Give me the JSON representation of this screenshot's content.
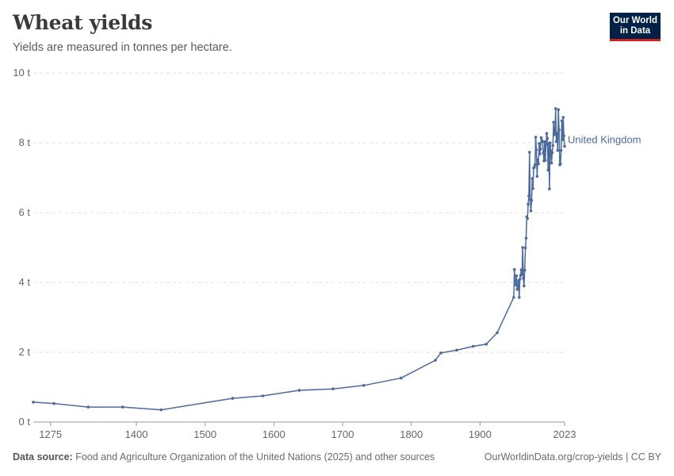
{
  "header": {
    "title": "Wheat yields",
    "subtitle": "Yields are measured in tonnes per hectare."
  },
  "logo": {
    "line1": "Our World",
    "line2": "in Data"
  },
  "footer": {
    "source_label": "Data source:",
    "source_text": "Food and Agriculture Organization of the United Nations (2025) and other sources",
    "link": "OurWorldinData.org/crop-yields | CC BY"
  },
  "colors": {
    "series": "#4c6a9c",
    "grid": "#dddddd",
    "text": "#666666",
    "logo_bg": "#002147",
    "logo_accent": "#ce261e"
  },
  "chart_data": {
    "type": "line",
    "title": "Wheat yields",
    "subtitle": "Yields are measured in tonnes per hectare.",
    "xlim": [
      1250,
      2023
    ],
    "ylim": [
      0,
      10
    ],
    "x_ticks": [
      1275,
      1400,
      1500,
      1600,
      1700,
      1800,
      1900,
      2023
    ],
    "x_tick_labels": [
      "1275",
      "1400",
      "1500",
      "1600",
      "1700",
      "1800",
      "1900",
      "2023"
    ],
    "y_ticks": [
      0,
      2,
      4,
      6,
      8,
      10
    ],
    "y_tick_labels": [
      "0 t",
      "2 t",
      "4 t",
      "6 t",
      "8 t",
      "10 t"
    ],
    "grid": true,
    "legend": "inline-end",
    "series": [
      {
        "name": "United Kingdom",
        "x": [
          1250,
          1280,
          1330,
          1380,
          1436,
          1540,
          1584,
          1637,
          1686,
          1731,
          1785,
          1835,
          1843,
          1866,
          1890,
          1909,
          1925,
          1949,
          1950,
          1951,
          1952,
          1953,
          1954,
          1955,
          1956,
          1957,
          1958,
          1959,
          1960,
          1961,
          1962,
          1963,
          1964,
          1965,
          1966,
          1967,
          1968,
          1969,
          1970,
          1971,
          1972,
          1973,
          1974,
          1975,
          1976,
          1977,
          1978,
          1979,
          1980,
          1981,
          1982,
          1983,
          1984,
          1985,
          1986,
          1987,
          1988,
          1989,
          1990,
          1991,
          1992,
          1993,
          1994,
          1995,
          1996,
          1997,
          1998,
          1999,
          2000,
          2001,
          2002,
          2003,
          2004,
          2005,
          2006,
          2007,
          2008,
          2009,
          2010,
          2011,
          2012,
          2013,
          2014,
          2015,
          2016,
          2017,
          2018,
          2019,
          2020,
          2021,
          2022,
          2023
        ],
        "values": [
          0.57,
          0.53,
          0.43,
          0.43,
          0.35,
          0.68,
          0.75,
          0.91,
          0.95,
          1.05,
          1.26,
          1.77,
          1.98,
          2.06,
          2.17,
          2.23,
          2.56,
          3.57,
          4.37,
          4.03,
          3.93,
          4.19,
          3.8,
          3.89,
          4.05,
          3.57,
          4.09,
          4.2,
          4.36,
          4.23,
          5.0,
          4.12,
          3.9,
          4.35,
          4.99,
          5.27,
          5.88,
          5.83,
          6.24,
          6.48,
          7.73,
          6.37,
          6.05,
          6.35,
          6.98,
          6.69,
          7.28,
          7.3,
          7.37,
          8.16,
          7.8,
          7.04,
          7.51,
          7.4,
          7.98,
          7.68,
          7.82,
          8.15,
          8.07,
          8.03,
          7.71,
          7.48,
          8.03,
          7.5,
          7.96,
          8.27,
          8.13,
          7.22,
          7.98,
          6.68,
          8.0,
          7.76,
          7.42,
          7.72,
          7.92,
          8.59,
          8.23,
          8.26,
          8.98,
          8.04,
          8.28,
          7.78,
          8.95,
          8.37,
          7.37,
          7.4,
          7.78,
          8.63,
          8.09,
          8.73,
          8.2,
          7.9
        ]
      }
    ]
  }
}
